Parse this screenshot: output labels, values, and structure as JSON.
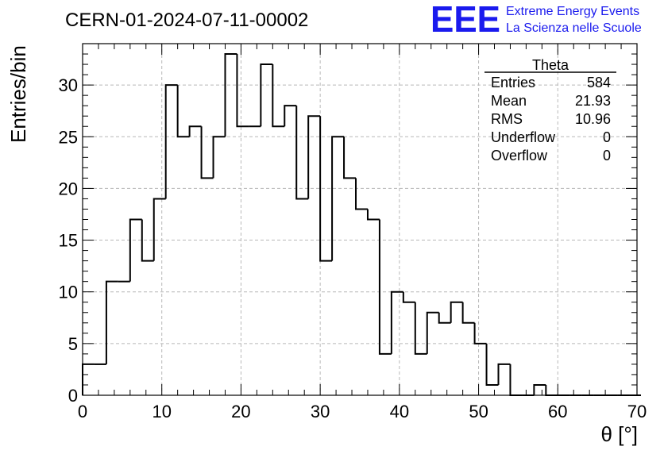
{
  "title": "CERN-01-2024-07-11-00002",
  "logo": {
    "letters": "EEE",
    "line1": "Extreme Energy Events",
    "line2": "La Scienza nelle Scuole",
    "color": "#1a1aee"
  },
  "stats_box": {
    "title": "Theta",
    "rows": [
      {
        "label": "Entries",
        "value": "584"
      },
      {
        "label": "Mean",
        "value": "21.93"
      },
      {
        "label": "RMS",
        "value": "10.96"
      },
      {
        "label": "Underflow",
        "value": "0"
      },
      {
        "label": "Overflow",
        "value": "0"
      }
    ]
  },
  "chart_data": {
    "type": "histogram",
    "title": "CERN-01-2024-07-11-00002",
    "xlabel": "θ [°]",
    "ylabel": "Entries/bin",
    "xlim": [
      0,
      70
    ],
    "ylim": [
      0,
      34
    ],
    "bin_width": 1.5,
    "bin_start": 0,
    "values": [
      3,
      3,
      11,
      11,
      17,
      13,
      19,
      30,
      25,
      26,
      21,
      25,
      33,
      26,
      26,
      32,
      26,
      28,
      19,
      27,
      13,
      25,
      21,
      18,
      17,
      4,
      10,
      9,
      4,
      8,
      7,
      9,
      7,
      5,
      1,
      3,
      0,
      0,
      1,
      0,
      0,
      0,
      0,
      0,
      0,
      0,
      0
    ],
    "xticks": [
      "0",
      "10",
      "20",
      "30",
      "40",
      "50",
      "60",
      "70"
    ],
    "yticks": [
      "0",
      "5",
      "10",
      "15",
      "20",
      "25",
      "30"
    ],
    "grid": true,
    "line_color": "#000000"
  }
}
